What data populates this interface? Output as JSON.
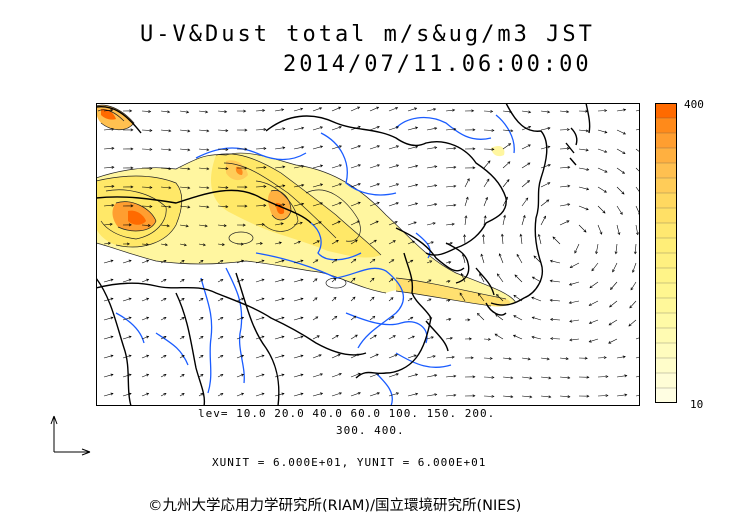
{
  "title_line1": "U-V&Dust total m/s&ug/m3 JST",
  "title_line2": "2014/07/11.06:00:00",
  "colorbar": {
    "max_label": "400",
    "min_label": "10",
    "colors": [
      "#ff6a00",
      "#ff8a1a",
      "#ff9e30",
      "#ffb040",
      "#ffc050",
      "#ffcc58",
      "#ffd860",
      "#ffe066",
      "#ffe870",
      "#ffee78",
      "#fff080",
      "#fff488",
      "#fff690",
      "#fff89a",
      "#fffaa6",
      "#fffbb2",
      "#fffcbe",
      "#fffdca",
      "#fffdd6",
      "#fffee2"
    ]
  },
  "levels_line1": "lev= 10.0 20.0 40.0 60.0 100. 150. 200.",
  "levels_line2": "300. 400.",
  "units": "XUNIT = 6.000E+01, YUNIT = 6.000E+01",
  "credit": "©九州大学応用力学研究所(RIAM)/国立環境研究所(NIES)"
}
